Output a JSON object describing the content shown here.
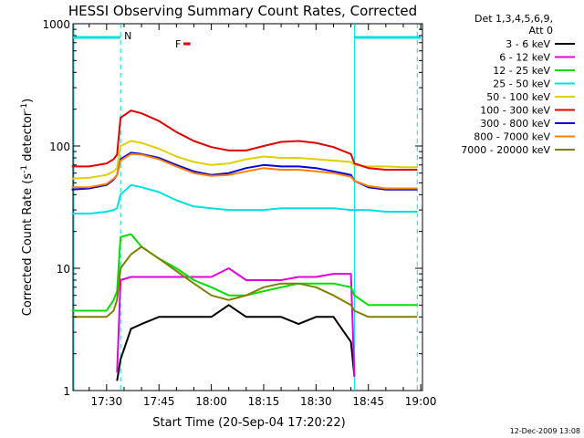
{
  "chart_data": {
    "type": "line",
    "title": "HESSI Observing Summary Count Rates, Corrected",
    "xlabel": "Start Time (20-Sep-04 17:20:22)",
    "ylabel": "Corrected Count Rate (s⁻¹ detector⁻¹)",
    "ylabel_parts": {
      "main": "Corrected Count Rate (s",
      "sup1": "-1",
      "mid": " detector",
      "sup2": "-1",
      "end": ")"
    },
    "footer": "12-Dec-2009 13:08",
    "y_scale": "log",
    "ylim": [
      1,
      1000
    ],
    "xlim": [
      "17:20:22",
      "19:00:30"
    ],
    "x_ticks": [
      "17:30",
      "17:45",
      "18:00",
      "18:15",
      "18:30",
      "18:45",
      "19:00"
    ],
    "y_ticks": [
      "1",
      "10",
      "100",
      "1000"
    ],
    "legend_header": [
      "Det 1,3,4,5,6,9,",
      "Att 0"
    ],
    "legend_placement": "right, outside plot",
    "markers": {
      "N_label": "N",
      "F_label": "F",
      "night_intervals": [
        [
          "17:20:22",
          "17:34"
        ],
        [
          "18:41",
          "19:00"
        ]
      ],
      "flare_bar": [
        "17:52",
        "17:54"
      ],
      "vlines_dashed": [
        "17:34",
        "18:59"
      ],
      "vlines_solid": [
        "18:41"
      ]
    },
    "x": [
      "17:20",
      "17:25",
      "17:30",
      "17:32",
      "17:33",
      "17:34",
      "17:37",
      "17:40",
      "17:45",
      "17:50",
      "17:55",
      "18:00",
      "18:05",
      "18:10",
      "18:15",
      "18:20",
      "18:25",
      "18:30",
      "18:35",
      "18:40",
      "18:41",
      "18:45",
      "18:50",
      "18:55",
      "18:59"
    ],
    "series": [
      {
        "name": "3 - 6 keV",
        "color": "#000000",
        "values": [
          null,
          null,
          null,
          null,
          1.2,
          1.8,
          3.2,
          3.5,
          4.0,
          4.0,
          4.0,
          4.0,
          5.0,
          4.0,
          4.0,
          4.0,
          3.5,
          4.0,
          4.0,
          2.5,
          1.3,
          null,
          null,
          null,
          null
        ]
      },
      {
        "name": "6 - 12 keV",
        "color": "#e000e0",
        "values": [
          null,
          null,
          null,
          null,
          1.4,
          8.0,
          8.5,
          8.5,
          8.5,
          8.5,
          8.5,
          8.5,
          10.0,
          8.0,
          8.0,
          8.0,
          8.5,
          8.5,
          9.0,
          9.0,
          1.3,
          null,
          null,
          null,
          null
        ]
      },
      {
        "name": "12 - 25 keV",
        "color": "#00e000",
        "values": [
          4.5,
          4.5,
          4.5,
          5.5,
          6.5,
          18.0,
          19.0,
          15.0,
          12.0,
          10.0,
          8.0,
          7.0,
          6.0,
          6.0,
          6.5,
          7.0,
          7.5,
          7.5,
          7.5,
          7.0,
          6.0,
          5.0,
          5.0,
          5.0,
          5.0
        ]
      },
      {
        "name": "25 - 50 keV",
        "color": "#00e0e0",
        "values": [
          28,
          28,
          29,
          30,
          31,
          40,
          48,
          46,
          42,
          36,
          32,
          31,
          30,
          30,
          30,
          31,
          31,
          31,
          31,
          30,
          30,
          30,
          29,
          29,
          29
        ]
      },
      {
        "name": "50 - 100 keV",
        "color": "#e0d000",
        "values": [
          54,
          55,
          58,
          62,
          66,
          100,
          110,
          106,
          95,
          82,
          74,
          70,
          72,
          78,
          82,
          80,
          80,
          78,
          76,
          74,
          70,
          68,
          68,
          67,
          67
        ]
      },
      {
        "name": "100 - 300 keV",
        "color": "#e00000",
        "values": [
          68,
          68,
          72,
          78,
          85,
          170,
          195,
          185,
          160,
          130,
          110,
          98,
          92,
          92,
          100,
          108,
          110,
          106,
          98,
          86,
          72,
          66,
          64,
          64,
          64
        ]
      },
      {
        "name": "300 - 800 keV",
        "color": "#0000e0",
        "values": [
          44,
          45,
          48,
          53,
          58,
          78,
          88,
          86,
          80,
          70,
          62,
          58,
          60,
          66,
          70,
          68,
          68,
          66,
          62,
          58,
          52,
          46,
          44,
          44,
          44
        ]
      },
      {
        "name": "800 - 7000 keV",
        "color": "#ff8000",
        "values": [
          46,
          46,
          49,
          54,
          58,
          76,
          86,
          85,
          78,
          68,
          60,
          57,
          58,
          62,
          66,
          64,
          64,
          62,
          60,
          56,
          52,
          47,
          45,
          45,
          45
        ]
      },
      {
        "name": "7000 - 20000 keV",
        "color": "#808000",
        "values": [
          4.0,
          4.0,
          4.0,
          4.5,
          5.5,
          10.0,
          13.0,
          15.0,
          12.0,
          9.5,
          7.5,
          6.0,
          5.5,
          6.0,
          7.0,
          7.5,
          7.5,
          7.0,
          6.0,
          5.0,
          4.5,
          4.0,
          4.0,
          4.0,
          4.0
        ]
      }
    ]
  }
}
